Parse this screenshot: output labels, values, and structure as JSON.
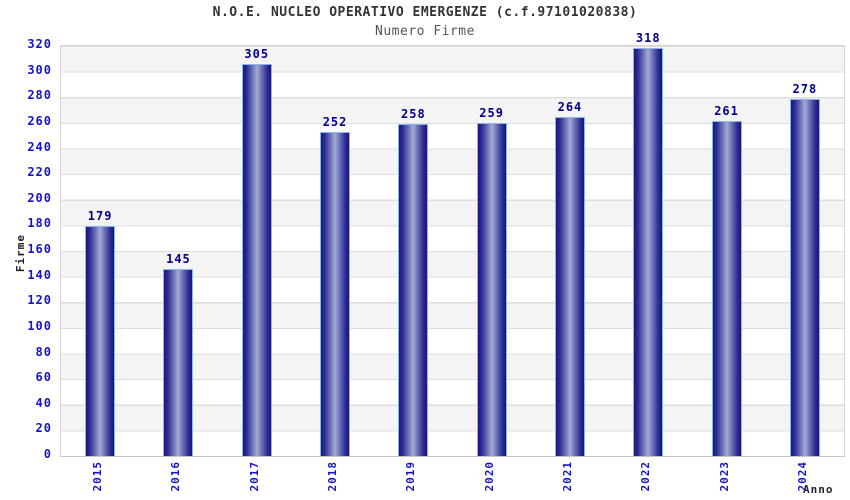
{
  "chart_data": {
    "type": "bar",
    "title": "N.O.E. NUCLEO OPERATIVO EMERGENZE (c.f.97101020838)",
    "subtitle": "Numero Firme",
    "xlabel": "Anno",
    "ylabel": "Firme",
    "categories": [
      "2015",
      "2016",
      "2017",
      "2018",
      "2019",
      "2020",
      "2021",
      "2022",
      "2023",
      "2024"
    ],
    "values": [
      179,
      145,
      305,
      252,
      258,
      259,
      264,
      318,
      261,
      278
    ],
    "ylim": [
      0,
      320
    ],
    "ytick_step": 20,
    "yticks": [
      0,
      20,
      40,
      60,
      80,
      100,
      120,
      140,
      160,
      180,
      200,
      220,
      240,
      260,
      280,
      300,
      320
    ],
    "grid": "horizontal-bands-alternating",
    "legend": "none",
    "colors": {
      "bar_dark": "#15157a",
      "bar_mid": "#2e2e96",
      "bar_light": "#a2abd5",
      "bar_border": "#8bb9ea",
      "value_label": "#00008b",
      "tick_label": "#1414cc",
      "title_color": "#333333",
      "subtitle_color": "#555555",
      "axis_title_color": "#222222",
      "band": "#f4f4f4",
      "gridline": "#dedede"
    }
  }
}
